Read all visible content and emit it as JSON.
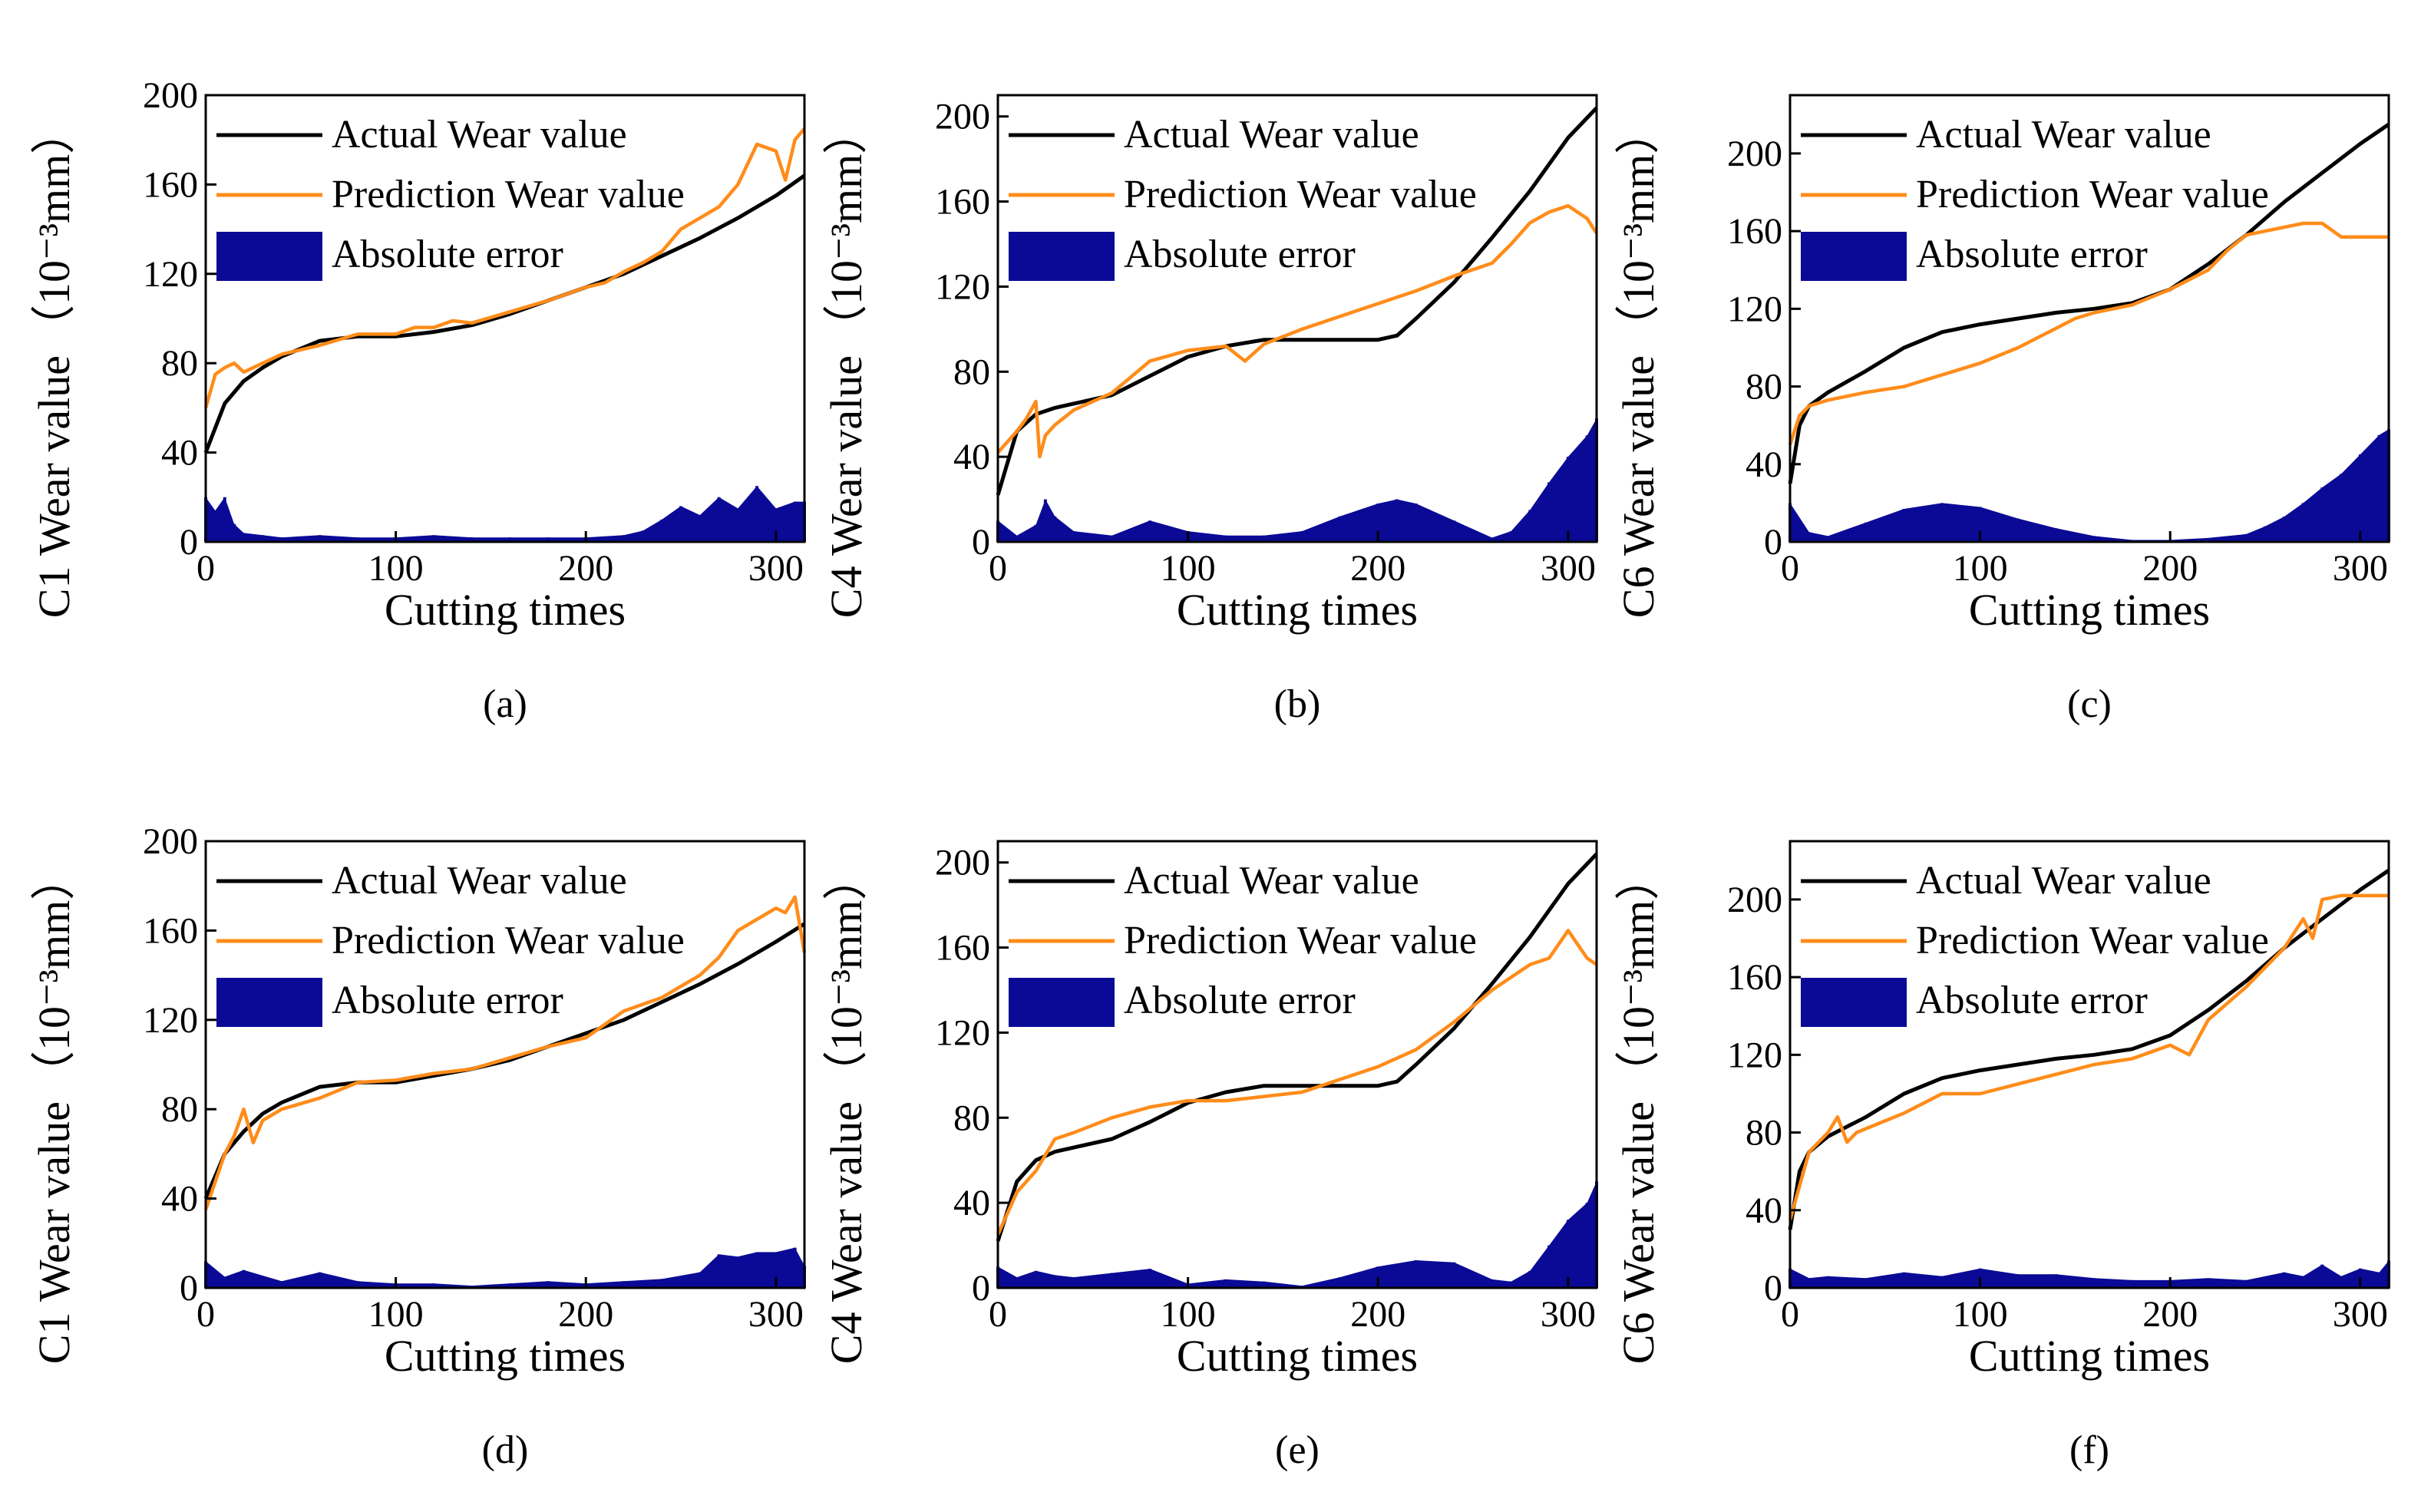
{
  "figure": {
    "legend": {
      "actual": "Actual Wear value",
      "predicted": "Prediction Wear value",
      "error": "Absolute error"
    },
    "colors": {
      "actual": "#000000",
      "predicted": "#ff8c1a",
      "error": "#0a0a96"
    }
  },
  "chart_data": [
    {
      "type": "line",
      "caption": "(a)",
      "title": "",
      "xlabel": "Cutting times",
      "ylabel_text": "C1 Wear value",
      "ylabel_unit": "（10⁻³mm）",
      "xlim": [
        0,
        315
      ],
      "ylim": [
        0,
        200
      ],
      "xticks": [
        0,
        100,
        200,
        300
      ],
      "yticks": [
        0,
        40,
        80,
        120,
        160,
        200
      ],
      "grid": false,
      "legend_position": "top-left",
      "series": [
        {
          "name": "Actual Wear value",
          "x": [
            0,
            10,
            20,
            30,
            40,
            60,
            80,
            100,
            120,
            140,
            160,
            180,
            200,
            220,
            240,
            260,
            280,
            300,
            315
          ],
          "values": [
            40,
            62,
            72,
            78,
            83,
            90,
            92,
            92,
            94,
            97,
            102,
            108,
            114,
            120,
            128,
            136,
            145,
            155,
            164
          ]
        },
        {
          "name": "Prediction Wear value",
          "x": [
            0,
            5,
            10,
            15,
            20,
            30,
            40,
            60,
            80,
            100,
            110,
            120,
            130,
            140,
            160,
            180,
            200,
            210,
            220,
            230,
            240,
            250,
            260,
            270,
            280,
            290,
            300,
            305,
            310,
            315
          ],
          "values": [
            60,
            75,
            78,
            80,
            76,
            80,
            84,
            88,
            93,
            93,
            96,
            96,
            99,
            98,
            103,
            108,
            114,
            116,
            121,
            125,
            130,
            140,
            145,
            150,
            160,
            178,
            175,
            162,
            180,
            185
          ]
        },
        {
          "name": "Absolute error",
          "x": [
            0,
            5,
            10,
            15,
            20,
            30,
            40,
            60,
            80,
            100,
            120,
            140,
            160,
            180,
            200,
            220,
            230,
            240,
            250,
            260,
            270,
            280,
            290,
            300,
            310,
            315
          ],
          "values": [
            20,
            14,
            20,
            8,
            4,
            3,
            2,
            3,
            2,
            2,
            3,
            2,
            2,
            2,
            2,
            3,
            5,
            10,
            16,
            12,
            20,
            15,
            25,
            15,
            18,
            18
          ]
        }
      ]
    },
    {
      "type": "line",
      "caption": "(b)",
      "title": "",
      "xlabel": "Cutting times",
      "ylabel_text": "C4 Wear value",
      "ylabel_unit": "（10⁻³mm）",
      "xlim": [
        0,
        315
      ],
      "ylim": [
        0,
        210
      ],
      "xticks": [
        0,
        100,
        200,
        300
      ],
      "yticks": [
        0,
        40,
        80,
        120,
        160,
        200
      ],
      "grid": false,
      "legend_position": "top-left",
      "series": [
        {
          "name": "Actual Wear value",
          "x": [
            0,
            10,
            20,
            30,
            40,
            60,
            80,
            100,
            120,
            140,
            160,
            180,
            200,
            210,
            220,
            240,
            260,
            280,
            300,
            315
          ],
          "values": [
            22,
            52,
            60,
            63,
            65,
            69,
            78,
            87,
            92,
            95,
            95,
            95,
            95,
            97,
            105,
            122,
            143,
            165,
            190,
            204
          ]
        },
        {
          "name": "Prediction Wear value",
          "x": [
            0,
            10,
            15,
            20,
            22,
            25,
            30,
            40,
            60,
            80,
            100,
            120,
            130,
            140,
            160,
            180,
            200,
            220,
            240,
            260,
            270,
            280,
            290,
            300,
            310,
            315
          ],
          "values": [
            42,
            52,
            58,
            66,
            40,
            50,
            55,
            62,
            70,
            85,
            90,
            92,
            85,
            93,
            100,
            106,
            112,
            118,
            125,
            131,
            140,
            150,
            155,
            158,
            152,
            145
          ]
        },
        {
          "name": "Absolute error",
          "x": [
            0,
            10,
            20,
            25,
            30,
            40,
            60,
            80,
            100,
            120,
            140,
            160,
            180,
            200,
            210,
            220,
            240,
            260,
            270,
            280,
            290,
            300,
            310,
            315
          ],
          "values": [
            10,
            3,
            8,
            20,
            12,
            5,
            3,
            10,
            5,
            3,
            3,
            5,
            12,
            18,
            20,
            18,
            10,
            2,
            5,
            15,
            28,
            40,
            50,
            58
          ]
        }
      ]
    },
    {
      "type": "line",
      "caption": "(c)",
      "title": "",
      "xlabel": "Cutting times",
      "ylabel_text": "C6 Wear value",
      "ylabel_unit": "（10⁻³mm）",
      "xlim": [
        0,
        315
      ],
      "ylim": [
        0,
        230
      ],
      "xticks": [
        0,
        100,
        200,
        300
      ],
      "yticks": [
        0,
        40,
        80,
        120,
        160,
        200
      ],
      "grid": false,
      "legend_position": "top-left",
      "series": [
        {
          "name": "Actual Wear value",
          "x": [
            0,
            5,
            10,
            20,
            40,
            60,
            80,
            100,
            120,
            140,
            160,
            180,
            200,
            220,
            240,
            260,
            280,
            300,
            315
          ],
          "values": [
            30,
            60,
            70,
            77,
            88,
            100,
            108,
            112,
            115,
            118,
            120,
            123,
            130,
            143,
            158,
            175,
            190,
            205,
            215
          ]
        },
        {
          "name": "Prediction Wear value",
          "x": [
            0,
            5,
            10,
            20,
            40,
            60,
            80,
            100,
            120,
            140,
            150,
            160,
            180,
            200,
            220,
            230,
            240,
            250,
            260,
            270,
            280,
            290,
            300,
            315
          ],
          "values": [
            50,
            65,
            70,
            73,
            77,
            80,
            86,
            92,
            100,
            110,
            115,
            118,
            122,
            130,
            140,
            150,
            158,
            160,
            162,
            164,
            164,
            157,
            157,
            157
          ]
        },
        {
          "name": "Absolute error",
          "x": [
            0,
            10,
            20,
            40,
            60,
            80,
            100,
            120,
            140,
            160,
            180,
            200,
            220,
            240,
            250,
            260,
            270,
            280,
            290,
            300,
            310,
            315
          ],
          "values": [
            20,
            5,
            3,
            10,
            17,
            20,
            18,
            12,
            7,
            3,
            1,
            1,
            2,
            4,
            8,
            13,
            20,
            28,
            35,
            45,
            55,
            58
          ]
        }
      ]
    },
    {
      "type": "line",
      "caption": "(d)",
      "title": "",
      "xlabel": "Cutting times",
      "ylabel_text": "C1 Wear value",
      "ylabel_unit": "（10⁻³mm）",
      "xlim": [
        0,
        315
      ],
      "ylim": [
        0,
        200
      ],
      "xticks": [
        0,
        100,
        200,
        300
      ],
      "yticks": [
        0,
        40,
        80,
        120,
        160,
        200
      ],
      "grid": false,
      "legend_position": "top-left",
      "series": [
        {
          "name": "Actual Wear value",
          "x": [
            0,
            10,
            20,
            30,
            40,
            60,
            80,
            100,
            120,
            140,
            160,
            180,
            200,
            220,
            240,
            260,
            280,
            300,
            315
          ],
          "values": [
            40,
            60,
            70,
            78,
            83,
            90,
            92,
            92,
            95,
            98,
            102,
            108,
            114,
            120,
            128,
            136,
            145,
            155,
            163
          ]
        },
        {
          "name": "Prediction Wear value",
          "x": [
            0,
            10,
            15,
            20,
            25,
            30,
            40,
            60,
            80,
            100,
            120,
            140,
            160,
            180,
            200,
            220,
            240,
            260,
            270,
            280,
            290,
            300,
            305,
            310,
            315
          ],
          "values": [
            35,
            60,
            68,
            80,
            65,
            75,
            80,
            85,
            92,
            93,
            96,
            98,
            103,
            108,
            112,
            124,
            130,
            140,
            148,
            160,
            165,
            170,
            168,
            175,
            150
          ]
        },
        {
          "name": "Absolute error",
          "x": [
            0,
            10,
            20,
            40,
            60,
            80,
            100,
            120,
            140,
            160,
            180,
            200,
            220,
            240,
            260,
            270,
            280,
            290,
            300,
            310,
            315
          ],
          "values": [
            12,
            5,
            8,
            3,
            7,
            3,
            2,
            2,
            1,
            2,
            3,
            2,
            3,
            4,
            7,
            15,
            14,
            16,
            16,
            18,
            10
          ]
        }
      ]
    },
    {
      "type": "line",
      "caption": "(e)",
      "title": "",
      "xlabel": "Cutting times",
      "ylabel_text": "C4 Wear value",
      "ylabel_unit": "（10⁻³mm）",
      "xlim": [
        0,
        315
      ],
      "ylim": [
        0,
        210
      ],
      "xticks": [
        0,
        100,
        200,
        300
      ],
      "yticks": [
        0,
        40,
        80,
        120,
        160,
        200
      ],
      "grid": false,
      "legend_position": "top-left",
      "series": [
        {
          "name": "Actual Wear value",
          "x": [
            0,
            10,
            20,
            30,
            40,
            60,
            80,
            100,
            120,
            140,
            160,
            180,
            200,
            210,
            220,
            240,
            260,
            280,
            300,
            315
          ],
          "values": [
            22,
            50,
            60,
            64,
            66,
            70,
            78,
            87,
            92,
            95,
            95,
            95,
            95,
            97,
            105,
            122,
            143,
            165,
            190,
            204
          ]
        },
        {
          "name": "Prediction Wear value",
          "x": [
            0,
            10,
            20,
            30,
            40,
            60,
            80,
            100,
            120,
            140,
            160,
            180,
            200,
            220,
            240,
            260,
            280,
            290,
            300,
            310,
            315
          ],
          "values": [
            25,
            45,
            55,
            70,
            73,
            80,
            85,
            88,
            88,
            90,
            92,
            98,
            104,
            112,
            125,
            140,
            152,
            155,
            168,
            155,
            152
          ]
        },
        {
          "name": "Absolute error",
          "x": [
            0,
            10,
            20,
            30,
            40,
            60,
            80,
            100,
            120,
            140,
            160,
            180,
            200,
            220,
            240,
            260,
            270,
            280,
            290,
            300,
            310,
            315
          ],
          "values": [
            10,
            5,
            8,
            6,
            5,
            7,
            9,
            2,
            4,
            3,
            1,
            5,
            10,
            13,
            12,
            4,
            3,
            8,
            20,
            32,
            40,
            50
          ]
        }
      ]
    },
    {
      "type": "line",
      "caption": "(f)",
      "title": "",
      "xlabel": "Cutting times",
      "ylabel_text": "C6 Wear value",
      "ylabel_unit": "（10⁻³mm）",
      "xlim": [
        0,
        315
      ],
      "ylim": [
        0,
        230
      ],
      "xticks": [
        0,
        100,
        200,
        300
      ],
      "yticks": [
        0,
        40,
        80,
        120,
        160,
        200
      ],
      "grid": false,
      "legend_position": "top-left",
      "series": [
        {
          "name": "Actual Wear value",
          "x": [
            0,
            5,
            10,
            20,
            40,
            60,
            80,
            100,
            120,
            140,
            160,
            180,
            200,
            220,
            240,
            260,
            280,
            300,
            315
          ],
          "values": [
            30,
            60,
            70,
            78,
            88,
            100,
            108,
            112,
            115,
            118,
            120,
            123,
            130,
            143,
            158,
            175,
            190,
            205,
            215
          ]
        },
        {
          "name": "Prediction Wear value",
          "x": [
            0,
            10,
            20,
            25,
            30,
            35,
            40,
            60,
            80,
            100,
            120,
            140,
            160,
            180,
            200,
            210,
            220,
            240,
            260,
            270,
            275,
            280,
            290,
            300,
            315
          ],
          "values": [
            35,
            70,
            80,
            88,
            75,
            80,
            82,
            90,
            100,
            100,
            105,
            110,
            115,
            118,
            125,
            120,
            138,
            155,
            175,
            190,
            180,
            200,
            202,
            202,
            202
          ]
        },
        {
          "name": "Absolute error",
          "x": [
            0,
            10,
            20,
            40,
            60,
            80,
            100,
            120,
            140,
            160,
            180,
            200,
            220,
            240,
            260,
            270,
            280,
            290,
            300,
            310,
            315
          ],
          "values": [
            10,
            5,
            6,
            5,
            8,
            6,
            10,
            7,
            7,
            5,
            4,
            4,
            5,
            4,
            8,
            6,
            12,
            6,
            10,
            8,
            14
          ]
        }
      ]
    }
  ]
}
